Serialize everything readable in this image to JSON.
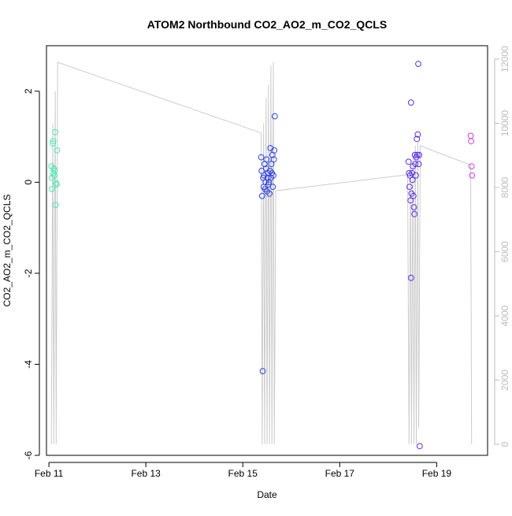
{
  "chart_data": {
    "type": "scatter",
    "title": "ATOM2 Northbound CO2_AO2_m_CO2_QCLS",
    "xlabel": "Date",
    "ylabel": "CO2_AO2_m_CO2_QCLS",
    "x_ticks": [
      "Feb 11",
      "Feb 13",
      "Feb 15",
      "Feb 17",
      "Feb 19"
    ],
    "x_tick_days": [
      11,
      13,
      15,
      17,
      19
    ],
    "xlim": [
      10.95,
      20.05
    ],
    "ylim": [
      -6,
      3
    ],
    "y_ticks": [
      2,
      0,
      -2,
      -4,
      -6
    ],
    "y2_ticks": [
      0,
      2000,
      4000,
      6000,
      8000,
      10000,
      12000
    ],
    "y2lim": [
      0,
      12000
    ],
    "colors": {
      "axis": "#000000",
      "right_axis": "#bbbbbb",
      "altitude_line": "#cccccc"
    },
    "series": [
      {
        "color": "#4de8b0",
        "points": [
          {
            "x": 11.05,
            "y": 0.35
          },
          {
            "x": 11.06,
            "y": 0.1
          },
          {
            "x": 11.06,
            "y": -0.15
          },
          {
            "x": 11.08,
            "y": 0.85
          },
          {
            "x": 11.09,
            "y": 0.9
          },
          {
            "x": 11.09,
            "y": 0.2
          },
          {
            "x": 11.1,
            "y": 0.3
          },
          {
            "x": 11.11,
            "y": 0.15
          },
          {
            "x": 11.12,
            "y": 0.25
          },
          {
            "x": 11.13,
            "y": 1.1
          },
          {
            "x": 11.14,
            "y": -0.5
          },
          {
            "x": 11.15,
            "y": -0.02
          },
          {
            "x": 11.16,
            "y": -0.05
          },
          {
            "x": 11.17,
            "y": 0.7
          }
        ]
      },
      {
        "color": "#2e44e0",
        "points": [
          {
            "x": 15.38,
            "y": 0.55
          },
          {
            "x": 15.39,
            "y": 0.25
          },
          {
            "x": 15.4,
            "y": -0.3
          },
          {
            "x": 15.41,
            "y": -4.15
          },
          {
            "x": 15.42,
            "y": 0.1
          },
          {
            "x": 15.43,
            "y": -0.1
          },
          {
            "x": 15.44,
            "y": 0.15
          },
          {
            "x": 15.45,
            "y": 0.4
          },
          {
            "x": 15.46,
            "y": -0.15
          },
          {
            "x": 15.47,
            "y": 0.0
          },
          {
            "x": 15.48,
            "y": 0.3
          },
          {
            "x": 15.49,
            "y": 0.5
          },
          {
            "x": 15.5,
            "y": -0.2
          },
          {
            "x": 15.51,
            "y": 0.1
          },
          {
            "x": 15.52,
            "y": 0.2
          },
          {
            "x": 15.53,
            "y": -0.05
          },
          {
            "x": 15.54,
            "y": 0.0
          },
          {
            "x": 15.55,
            "y": -0.25
          },
          {
            "x": 15.56,
            "y": 0.25
          },
          {
            "x": 15.57,
            "y": 0.75
          },
          {
            "x": 15.58,
            "y": 0.1
          },
          {
            "x": 15.59,
            "y": 0.4
          },
          {
            "x": 15.6,
            "y": 0.2
          },
          {
            "x": 15.61,
            "y": 0.6
          },
          {
            "x": 15.62,
            "y": -0.1
          },
          {
            "x": 15.63,
            "y": 0.15
          },
          {
            "x": 15.64,
            "y": 0.5
          },
          {
            "x": 15.65,
            "y": 0.7
          },
          {
            "x": 15.66,
            "y": 1.45
          }
        ]
      },
      {
        "color": "#5b2ee8",
        "points": [
          {
            "x": 18.42,
            "y": 0.45
          },
          {
            "x": 18.43,
            "y": 0.2
          },
          {
            "x": 18.44,
            "y": -0.1
          },
          {
            "x": 18.45,
            "y": 0.15
          },
          {
            "x": 18.46,
            "y": -0.4
          },
          {
            "x": 18.47,
            "y": 1.75
          },
          {
            "x": 18.47,
            "y": -2.1
          },
          {
            "x": 18.48,
            "y": -0.25
          },
          {
            "x": 18.49,
            "y": 0.2
          },
          {
            "x": 18.5,
            "y": 0.05
          },
          {
            "x": 18.51,
            "y": 0.35
          },
          {
            "x": 18.52,
            "y": -0.3
          },
          {
            "x": 18.53,
            "y": -0.55
          },
          {
            "x": 18.54,
            "y": -0.7
          },
          {
            "x": 18.55,
            "y": 0.6
          },
          {
            "x": 18.56,
            "y": 0.4
          },
          {
            "x": 18.57,
            "y": 0.15
          },
          {
            "x": 18.58,
            "y": 0.55
          },
          {
            "x": 18.59,
            "y": 0.95
          },
          {
            "x": 18.6,
            "y": 0.6
          },
          {
            "x": 18.61,
            "y": 1.05
          },
          {
            "x": 18.62,
            "y": 2.6
          },
          {
            "x": 18.63,
            "y": 0.4
          },
          {
            "x": 18.64,
            "y": 0.6
          },
          {
            "x": 18.65,
            "y": -5.8
          }
        ]
      },
      {
        "color": "#d43ee0",
        "points": [
          {
            "x": 19.7,
            "y": 1.02
          },
          {
            "x": 19.71,
            "y": 0.9
          },
          {
            "x": 19.72,
            "y": 0.35
          },
          {
            "x": 19.73,
            "y": 0.15
          }
        ]
      }
    ],
    "altitude_line": [
      {
        "x": 11.05,
        "y2": 0
      },
      {
        "x": 11.08,
        "y2": 10000
      },
      {
        "x": 11.1,
        "y2": 0
      },
      {
        "x": 11.13,
        "y2": 11000
      },
      {
        "x": 11.15,
        "y2": 0
      },
      {
        "x": 11.18,
        "y2": 11900
      },
      {
        "x": 15.38,
        "y2": 9700
      },
      {
        "x": 15.4,
        "y2": 0
      },
      {
        "x": 15.43,
        "y2": 10000
      },
      {
        "x": 15.45,
        "y2": 0
      },
      {
        "x": 15.48,
        "y2": 10800
      },
      {
        "x": 15.5,
        "y2": 0
      },
      {
        "x": 15.53,
        "y2": 11200
      },
      {
        "x": 15.55,
        "y2": 0
      },
      {
        "x": 15.58,
        "y2": 11800
      },
      {
        "x": 15.6,
        "y2": 0
      },
      {
        "x": 15.63,
        "y2": 11900
      },
      {
        "x": 15.65,
        "y2": 0
      },
      {
        "x": 15.68,
        "y2": 7900
      },
      {
        "x": 18.4,
        "y2": 8400
      },
      {
        "x": 18.43,
        "y2": 0
      },
      {
        "x": 18.46,
        "y2": 8700
      },
      {
        "x": 18.48,
        "y2": 0
      },
      {
        "x": 18.51,
        "y2": 9100
      },
      {
        "x": 18.53,
        "y2": 0
      },
      {
        "x": 18.56,
        "y2": 9300
      },
      {
        "x": 18.58,
        "y2": 0
      },
      {
        "x": 18.61,
        "y2": 9400
      },
      {
        "x": 18.63,
        "y2": 500
      },
      {
        "x": 18.66,
        "y2": 9300
      },
      {
        "x": 19.7,
        "y2": 8700
      },
      {
        "x": 19.72,
        "y2": 0
      }
    ]
  }
}
